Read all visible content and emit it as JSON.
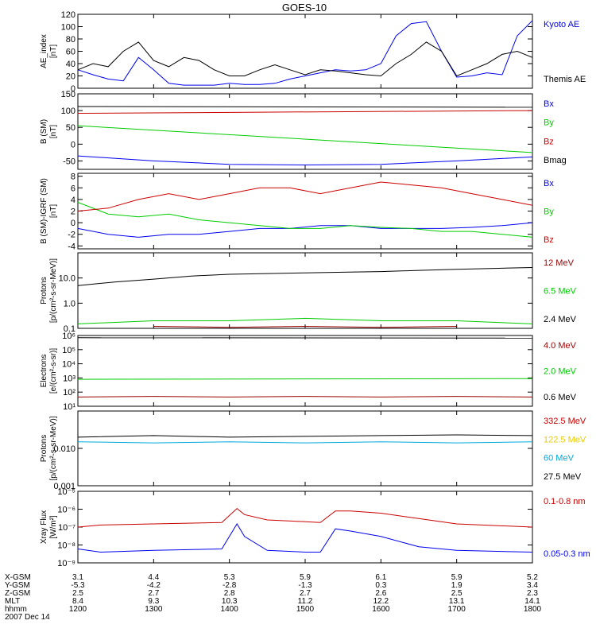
{
  "title": "GOES-10",
  "colors": {
    "black": "#000000",
    "blue": "#0000ee",
    "red": "#cc0000",
    "green": "#00cc00",
    "darkred": "#990000",
    "cyan": "#00aadd",
    "yellow": "#eecc00"
  },
  "time_ticks": [
    "1200",
    "1300",
    "1400",
    "1500",
    "1600",
    "1700",
    "1800"
  ],
  "footer": {
    "row_labels": [
      "X-GSM",
      "Y-GSM",
      "Z-GSM",
      "MLT",
      "hhmm",
      "2007 Dec 14"
    ],
    "x_gsm": [
      "3.1",
      "4.4",
      "5.3",
      "5.9",
      "6.1",
      "5.9",
      "5.2"
    ],
    "y_gsm": [
      "-5.3",
      "-4.2",
      "-2.8",
      "-1.3",
      "0.3",
      "1.9",
      "3.4"
    ],
    "z_gsm": [
      "2.5",
      "2.7",
      "2.8",
      "2.7",
      "2.6",
      "2.5",
      "2.3"
    ],
    "mlt": [
      "8.4",
      "9.3",
      "10.3",
      "11.2",
      "12.2",
      "13.1",
      "14.1"
    ],
    "hhmm": [
      "1200",
      "1300",
      "1400",
      "1500",
      "1600",
      "1700",
      "1800"
    ]
  },
  "chart_data": [
    {
      "type": "line",
      "ylabel_lines": [
        "AE_index",
        "[nT]"
      ],
      "ylim": [
        0,
        120
      ],
      "log": false,
      "yticks": [
        "0",
        "20",
        "40",
        "60",
        "80",
        "100",
        "120"
      ],
      "ytick_values": [
        0,
        20,
        40,
        60,
        80,
        100,
        120
      ],
      "series": [
        {
          "name": "Kyoto AE",
          "color": "blue",
          "x": [
            0,
            0.2,
            0.4,
            0.6,
            0.8,
            1,
            1.2,
            1.4,
            1.6,
            1.8,
            2,
            2.2,
            2.4,
            2.6,
            2.8,
            3,
            3.2,
            3.4,
            3.6,
            3.8,
            4,
            4.2,
            4.4,
            4.6,
            4.8,
            5,
            5.2,
            5.4,
            5.6,
            5.8,
            6
          ],
          "y": [
            30,
            22,
            15,
            12,
            50,
            30,
            8,
            5,
            5,
            5,
            8,
            6,
            6,
            8,
            15,
            20,
            25,
            30,
            28,
            30,
            40,
            85,
            105,
            108,
            60,
            18,
            20,
            25,
            22,
            85,
            110
          ]
        },
        {
          "name": "Themis AE",
          "color": "black",
          "x": [
            0,
            0.2,
            0.4,
            0.6,
            0.8,
            1,
            1.2,
            1.4,
            1.6,
            1.8,
            2,
            2.2,
            2.4,
            2.6,
            2.8,
            3,
            3.2,
            3.4,
            3.6,
            3.8,
            4,
            4.2,
            4.4,
            4.6,
            4.8,
            5,
            5.2,
            5.4,
            5.6,
            5.8,
            6
          ],
          "y": [
            30,
            40,
            35,
            60,
            75,
            45,
            35,
            50,
            45,
            30,
            20,
            20,
            30,
            38,
            30,
            22,
            30,
            28,
            25,
            22,
            20,
            40,
            55,
            75,
            60,
            20,
            30,
            40,
            55,
            60,
            50
          ]
        }
      ]
    },
    {
      "type": "line",
      "ylabel_lines": [
        "B (SM)",
        "[nT]"
      ],
      "ylim": [
        -75,
        150
      ],
      "log": false,
      "yticks": [
        "-50",
        "0",
        "50",
        "100",
        "150"
      ],
      "ytick_values": [
        -50,
        0,
        50,
        100,
        150
      ],
      "series": [
        {
          "name": "Bx",
          "color": "blue",
          "x": [
            0,
            1,
            2,
            3,
            4,
            5,
            6
          ],
          "y": [
            -35,
            -50,
            -60,
            -62,
            -60,
            -50,
            -38
          ]
        },
        {
          "name": "By",
          "color": "green",
          "x": [
            0,
            6
          ],
          "y": [
            55,
            -25
          ]
        },
        {
          "name": "Bz",
          "color": "red",
          "x": [
            0,
            6
          ],
          "y": [
            92,
            100
          ]
        },
        {
          "name": "Bmag",
          "color": "black",
          "x": [
            0,
            6
          ],
          "y": [
            112,
            110
          ]
        }
      ]
    },
    {
      "type": "line",
      "ylabel_lines": [
        "B (SM)-IGRF (SM)",
        "[nT]"
      ],
      "ylim": [
        -4.5,
        8.5
      ],
      "log": false,
      "yticks": [
        "-4",
        "-2",
        "0",
        "2",
        "4",
        "6",
        "8"
      ],
      "ytick_values": [
        -4,
        -2,
        0,
        2,
        4,
        6,
        8
      ],
      "series": [
        {
          "name": "Bx",
          "color": "blue",
          "x": [
            0,
            0.4,
            0.8,
            1.2,
            1.6,
            2,
            2.4,
            2.8,
            3.2,
            3.6,
            4,
            4.4,
            4.8,
            5.2,
            5.6,
            6
          ],
          "y": [
            -1,
            -2,
            -2.5,
            -2,
            -2,
            -1.5,
            -1,
            -1,
            -0.5,
            -0.5,
            -1,
            -1,
            -1,
            -0.8,
            -0.5,
            0
          ]
        },
        {
          "name": "By",
          "color": "green",
          "x": [
            0,
            0.4,
            0.8,
            1.2,
            1.6,
            2,
            2.4,
            2.8,
            3.2,
            3.6,
            4,
            4.4,
            4.8,
            5.2,
            5.6,
            6
          ],
          "y": [
            3.5,
            1.5,
            1,
            1.5,
            0.5,
            0,
            -0.5,
            -1,
            -1,
            -0.5,
            -0.8,
            -1,
            -1.5,
            -1.5,
            -2,
            -2.5
          ]
        },
        {
          "name": "Bz",
          "color": "red",
          "x": [
            0,
            0.4,
            0.8,
            1.2,
            1.6,
            2,
            2.4,
            2.8,
            3.2,
            3.6,
            4,
            4.4,
            4.8,
            5.2,
            5.6,
            6
          ],
          "y": [
            2,
            2.5,
            4,
            5,
            4,
            5,
            6,
            6,
            5,
            6,
            7,
            6.5,
            6,
            5,
            4,
            3
          ]
        }
      ]
    },
    {
      "type": "line",
      "ylabel_lines": [
        "Protons",
        "[p/(cm²-s-sr-MeV)]"
      ],
      "ylim": [
        0.1,
        100
      ],
      "log": true,
      "yticks": [
        "0.1",
        "1.0",
        "10.0"
      ],
      "ytick_values": [
        0.1,
        1,
        10
      ],
      "series": [
        {
          "name": "12 MeV",
          "color": "darkred",
          "x": [
            1,
            2,
            3,
            4,
            5
          ],
          "y": [
            0.12,
            0.11,
            0.12,
            0.11,
            0.12
          ]
        },
        {
          "name": "6.5 MeV",
          "color": "green",
          "x": [
            0,
            1,
            2,
            3,
            4,
            5,
            6
          ],
          "y": [
            0.15,
            0.2,
            0.2,
            0.25,
            0.2,
            0.2,
            0.15
          ]
        },
        {
          "name": "2.4 MeV",
          "color": "black",
          "x": [
            0,
            0.5,
            1,
            1.5,
            2,
            2.5,
            3,
            3.5,
            4,
            4.5,
            5,
            5.5,
            6
          ],
          "y": [
            5,
            7,
            9,
            12,
            14,
            15,
            16,
            17,
            18,
            20,
            22,
            24,
            26
          ]
        }
      ]
    },
    {
      "type": "line",
      "ylabel_lines": [
        "Electrons",
        "[e/(cm²-s-sr)]"
      ],
      "ylim": [
        10,
        1000000
      ],
      "log": true,
      "yticks": [
        "10¹",
        "10²",
        "10³",
        "10⁴",
        "10⁵",
        "10⁶"
      ],
      "ytick_values": [
        10,
        100,
        1000,
        10000,
        100000,
        1000000
      ],
      "series": [
        {
          "name": "4.0 MeV",
          "color": "darkred",
          "x": [
            0,
            1,
            2,
            3,
            4,
            5,
            6
          ],
          "y": [
            45,
            50,
            45,
            50,
            45,
            50,
            45
          ]
        },
        {
          "name": "2.0 MeV",
          "color": "green",
          "x": [
            0,
            6
          ],
          "y": [
            800,
            900
          ]
        },
        {
          "name": "0.6 MeV",
          "color": "black",
          "x": [
            0,
            6
          ],
          "y": [
            700000,
            650000
          ]
        }
      ]
    },
    {
      "type": "line",
      "ylabel_lines": [
        "Protons",
        "[p/(cm²-s-sr-MeV)]"
      ],
      "ylim": [
        0.001,
        0.1
      ],
      "log": true,
      "yticks": [
        "0.001",
        "0.010"
      ],
      "ytick_values": [
        0.001,
        0.01
      ],
      "series": [
        {
          "name": "332.5 MeV",
          "color": "red",
          "x": [],
          "y": []
        },
        {
          "name": "122.5 MeV",
          "color": "yellow",
          "x": [],
          "y": []
        },
        {
          "name": "60 MeV",
          "color": "cyan",
          "x": [
            0,
            1,
            2,
            3,
            4,
            5,
            6
          ],
          "y": [
            0.015,
            0.014,
            0.015,
            0.014,
            0.015,
            0.014,
            0.015
          ]
        },
        {
          "name": "27.5 MeV",
          "color": "black",
          "x": [
            0,
            1,
            2,
            3,
            4,
            5,
            6
          ],
          "y": [
            0.02,
            0.022,
            0.02,
            0.021,
            0.022,
            0.023,
            0.022
          ]
        }
      ]
    },
    {
      "type": "line",
      "ylabel_lines": [
        "Xray Flux",
        "[W/m²]"
      ],
      "ylim": [
        1e-09,
        1e-05
      ],
      "log": true,
      "yticks": [
        "10⁻⁹",
        "10⁻⁸",
        "10⁻⁷",
        "10⁻⁶",
        "10⁻⁵"
      ],
      "ytick_values": [
        1e-09,
        1e-08,
        1e-07,
        1e-06,
        1e-05
      ],
      "series": [
        {
          "name": "0.1-0.8 nm",
          "color": "red",
          "x": [
            0,
            0.3,
            1,
            1.9,
            2.1,
            2.2,
            2.5,
            3.0,
            3.2,
            3.4,
            3.6,
            4,
            4.5,
            5,
            6
          ],
          "y": [
            1e-07,
            1.3e-07,
            1.5e-07,
            1.8e-07,
            1.1e-06,
            5e-07,
            2.5e-07,
            2e-07,
            1.8e-07,
            8e-07,
            8e-07,
            6e-07,
            3e-07,
            1.5e-07,
            1e-07
          ]
        },
        {
          "name": "0.05-0.3 nm",
          "color": "blue",
          "x": [
            0,
            0.3,
            1,
            1.9,
            2.1,
            2.2,
            2.5,
            3.0,
            3.2,
            3.4,
            3.6,
            4,
            4.5,
            5,
            6
          ],
          "y": [
            6e-09,
            4e-09,
            5e-09,
            6e-09,
            1.5e-07,
            3e-08,
            5e-09,
            4e-09,
            4e-09,
            8e-08,
            6e-08,
            3e-08,
            8e-09,
            5e-09,
            4e-09
          ]
        }
      ]
    }
  ]
}
